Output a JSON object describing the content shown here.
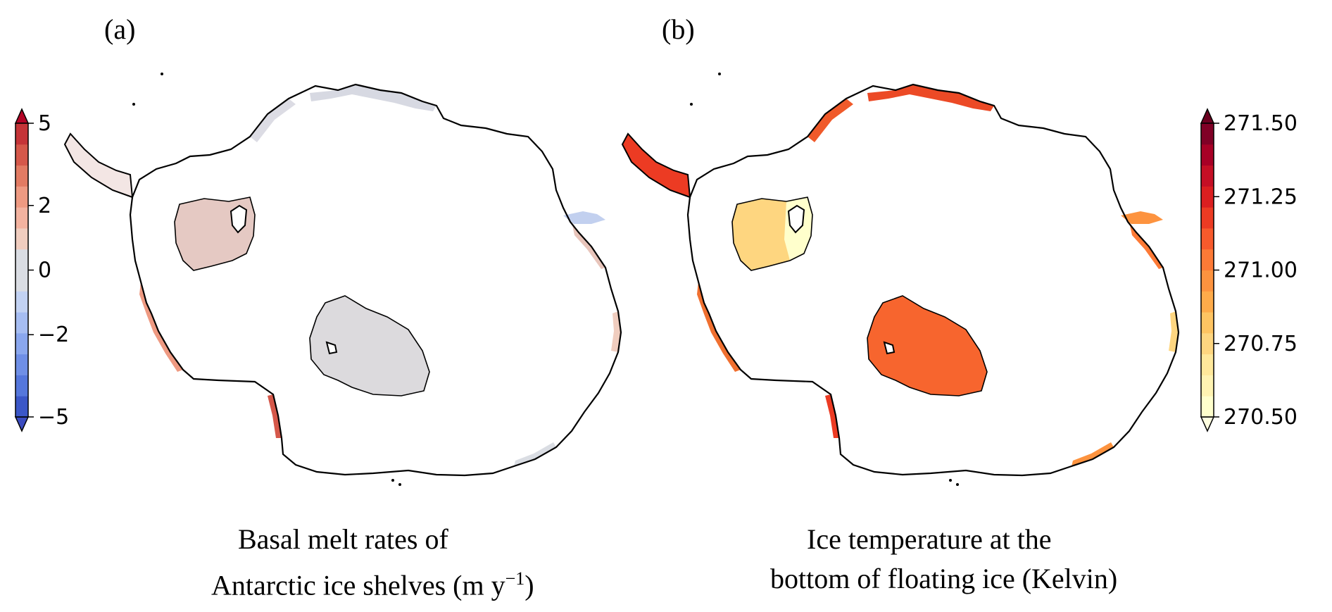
{
  "panels": [
    {
      "letter": "(a)",
      "caption_line1": "Basal melt rates of",
      "caption_line2_main": "Antarctic ice shelves (m y",
      "caption_line2_sup": "−1",
      "caption_line2_end": ")",
      "colorbar": {
        "colors": [
          "#3b57c8",
          "#5577dc",
          "#6f8fe6",
          "#8aa7ee",
          "#a6bdf2",
          "#c2d2f3",
          "#dadde3",
          "#dadde3",
          "#f0cdbf",
          "#f3b3a0",
          "#ee9a82",
          "#e27b63",
          "#d5584a",
          "#c53438"
        ],
        "extend_colors": {
          "low": "#3b4cc0",
          "high": "#b40426"
        },
        "ticks": [
          {
            "value": 5,
            "label": "5"
          },
          {
            "value": 2,
            "label": "2"
          },
          {
            "value": 0,
            "label": "0"
          },
          {
            "value": -2,
            "label": "−2"
          },
          {
            "value": -5,
            "label": "−5"
          }
        ],
        "range": [
          -5,
          5
        ]
      }
    },
    {
      "letter": "(b)",
      "caption_line1": "Ice temperature at the",
      "caption_line2": "bottom of floating ice (Kelvin)",
      "colorbar": {
        "colors": [
          "#ffffcc",
          "#fff3b2",
          "#ffe89b",
          "#fed680",
          "#fec462",
          "#feab4a",
          "#fd933f",
          "#fd7a36",
          "#f75a2c",
          "#ec3b23",
          "#db1f20",
          "#c50f25",
          "#a80026",
          "#800026"
        ],
        "extend_colors": {
          "low": "#ffffe0",
          "high": "#6b0020"
        },
        "ticks": [
          {
            "value": 271.5,
            "label": "271.50"
          },
          {
            "value": 271.25,
            "label": "271.25"
          },
          {
            "value": 271.0,
            "label": "271.00"
          },
          {
            "value": 270.75,
            "label": "270.75"
          },
          {
            "value": 270.5,
            "label": "270.50"
          }
        ],
        "range": [
          270.5,
          271.5
        ]
      }
    }
  ]
}
